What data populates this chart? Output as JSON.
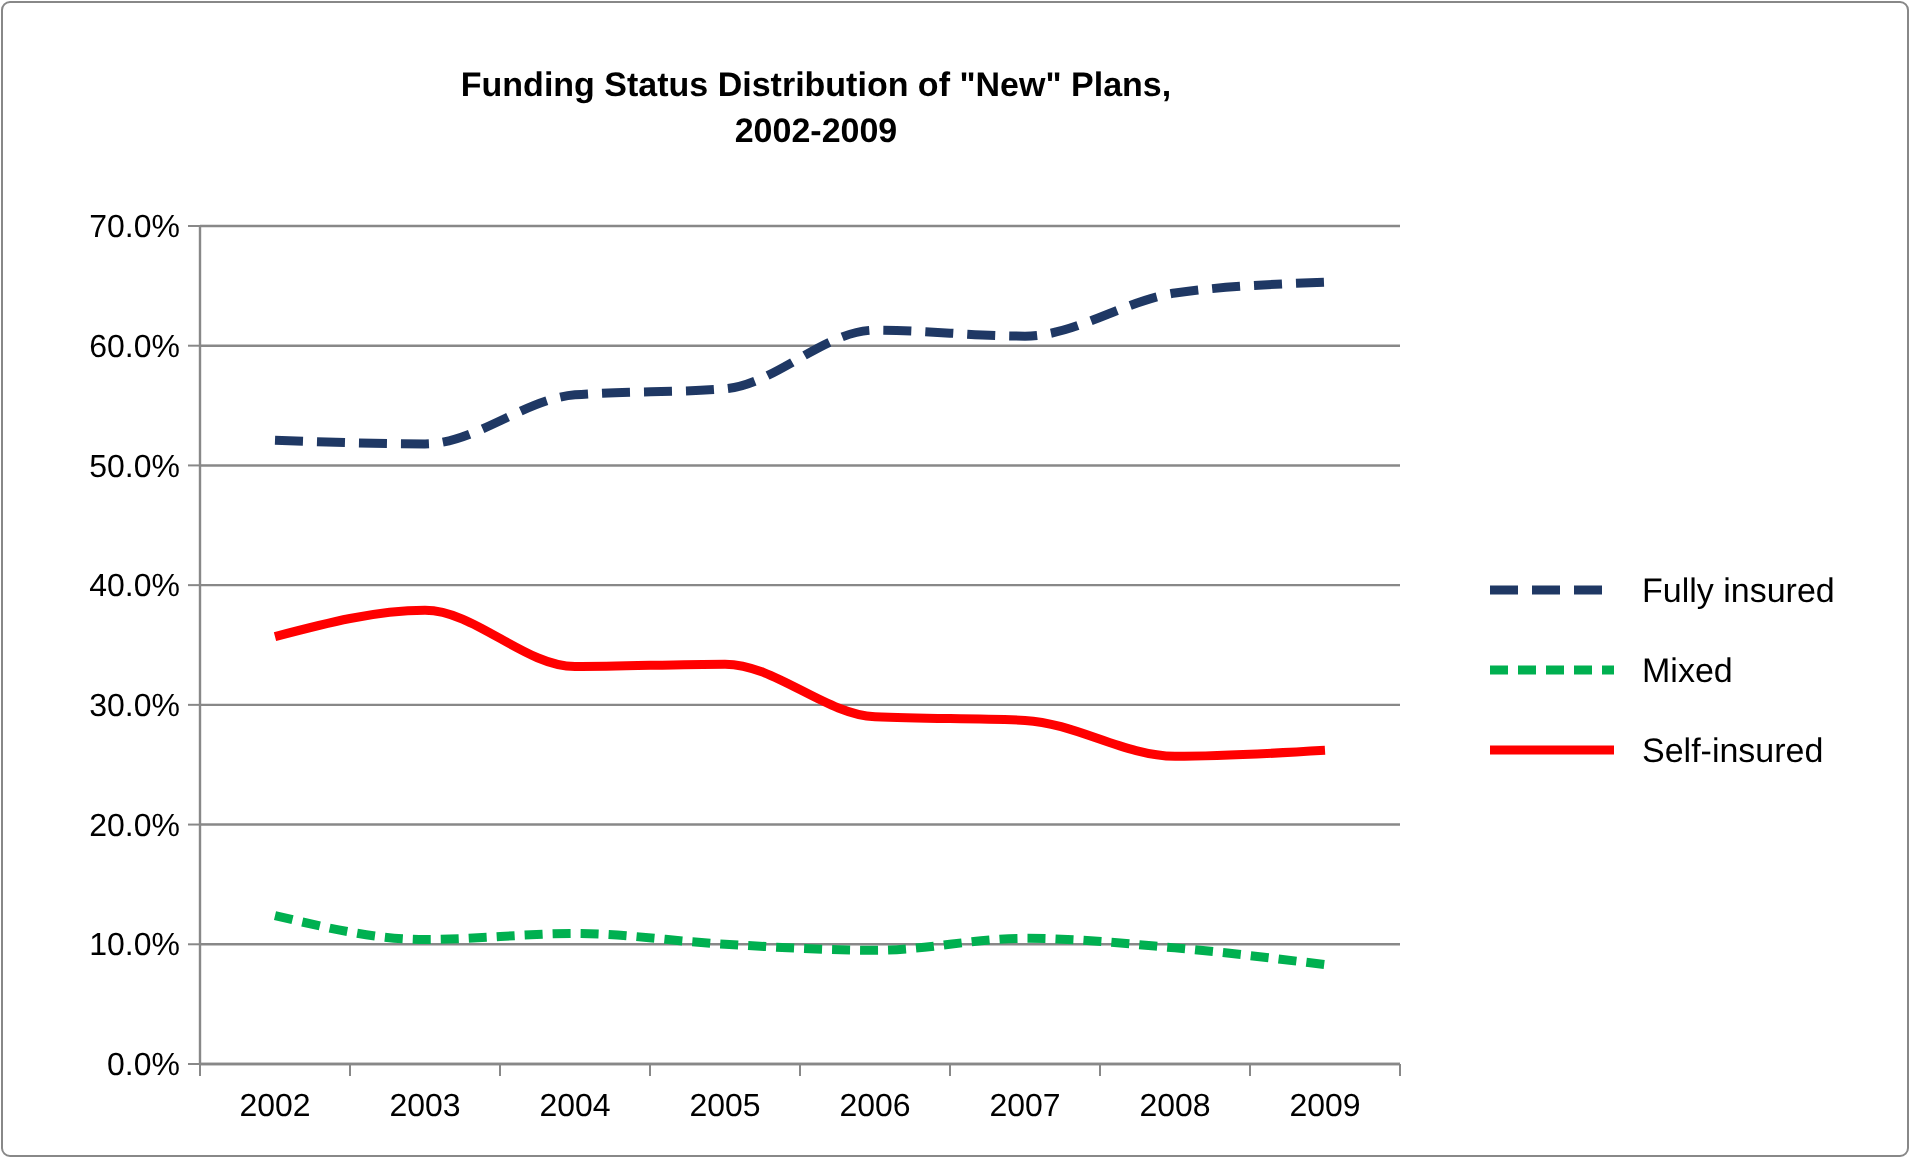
{
  "chart_data": {
    "type": "line",
    "title": "Funding Status Distribution of \"New\" Plans, 2002-2009",
    "categories": [
      "2002",
      "2003",
      "2004",
      "2005",
      "2006",
      "2007",
      "2008",
      "2009"
    ],
    "series": [
      {
        "name": "Fully insured",
        "color": "#1f3864",
        "line_style": "dashed",
        "values": [
          52.1,
          51.8,
          55.9,
          56.4,
          61.3,
          60.8,
          64.4,
          65.3
        ]
      },
      {
        "name": "Mixed",
        "color": "#00b050",
        "line_style": "dotted",
        "values": [
          12.4,
          10.4,
          10.9,
          10.0,
          9.5,
          10.5,
          9.7,
          8.3
        ]
      },
      {
        "name": "Self-insured",
        "color": "#ff0000",
        "line_style": "solid",
        "values": [
          35.7,
          37.9,
          33.2,
          33.4,
          29.0,
          28.7,
          25.7,
          26.2
        ]
      }
    ],
    "ylim": [
      0,
      70
    ],
    "yticks": [
      {
        "value": 0,
        "label": "0.0%"
      },
      {
        "value": 10,
        "label": "10.0%"
      },
      {
        "value": 20,
        "label": "20.0%"
      },
      {
        "value": 30,
        "label": "30.0%"
      },
      {
        "value": 40,
        "label": "40.0%"
      },
      {
        "value": 50,
        "label": "50.0%"
      },
      {
        "value": 60,
        "label": "60.0%"
      },
      {
        "value": 70,
        "label": "70.0%"
      }
    ],
    "grid": "y",
    "legend": "right",
    "marker": "none"
  }
}
